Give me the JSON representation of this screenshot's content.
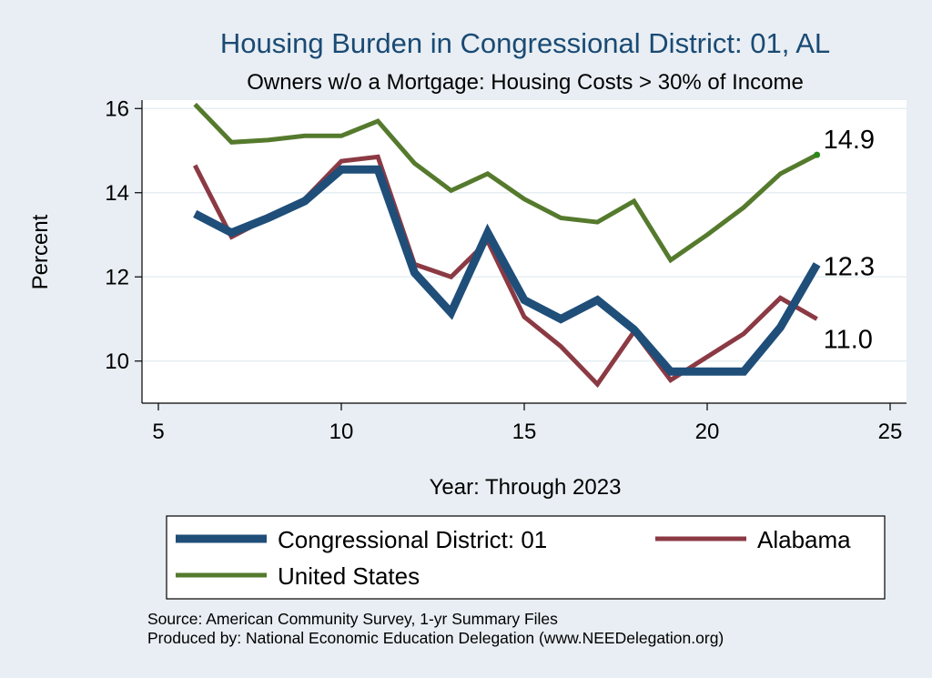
{
  "chart_data": {
    "type": "line",
    "title": "Housing Burden in Congressional District:  01, AL",
    "subtitle": "Owners w/o a Mortgage: Housing Costs > 30% of Income",
    "xlabel": "Year: Through 2023",
    "ylabel": "Percent",
    "xlim": [
      5,
      25
    ],
    "ylim": [
      9.0,
      16.2
    ],
    "x_ticks": [
      5,
      10,
      15,
      20,
      25
    ],
    "y_ticks": [
      10,
      12,
      14,
      16
    ],
    "x_tick_labels": [
      "5",
      "10",
      "15",
      "20",
      "25"
    ],
    "y_tick_labels": [
      "10",
      "12",
      "14",
      "16"
    ],
    "grid": true,
    "legend_position": "bottom",
    "x": [
      6,
      7,
      8,
      9,
      10,
      11,
      12,
      13,
      14,
      15,
      16,
      17,
      18,
      19,
      20,
      21,
      22,
      23
    ],
    "series": [
      {
        "name": "Congressional District:  01",
        "color": "#1f4e79",
        "values": [
          13.5,
          13.05,
          13.4,
          13.8,
          14.55,
          14.55,
          12.1,
          11.15,
          13.05,
          11.45,
          11.0,
          11.45,
          10.75,
          9.75,
          9.75,
          9.75,
          10.8,
          12.3
        ],
        "end_label": "12.3"
      },
      {
        "name": "Alabama",
        "color": "#8b3a44",
        "values": [
          14.65,
          12.95,
          13.4,
          13.85,
          14.75,
          14.85,
          12.3,
          12.0,
          12.85,
          11.05,
          10.35,
          9.45,
          10.7,
          9.55,
          10.1,
          10.65,
          11.5,
          11.0
        ],
        "end_label": "11.0"
      },
      {
        "name": "United States",
        "color": "#557a2d",
        "values": [
          16.1,
          15.2,
          15.25,
          15.35,
          15.35,
          15.7,
          14.7,
          14.05,
          14.45,
          13.85,
          13.4,
          13.3,
          13.8,
          12.4,
          13.0,
          13.65,
          14.45,
          14.9
        ],
        "end_label": "14.9"
      }
    ],
    "notes": [
      "Source: American Community Survey, 1-yr Summary Files",
      "Produced by: National Economic Education Delegation (www.NEEDelegation.org)"
    ]
  }
}
